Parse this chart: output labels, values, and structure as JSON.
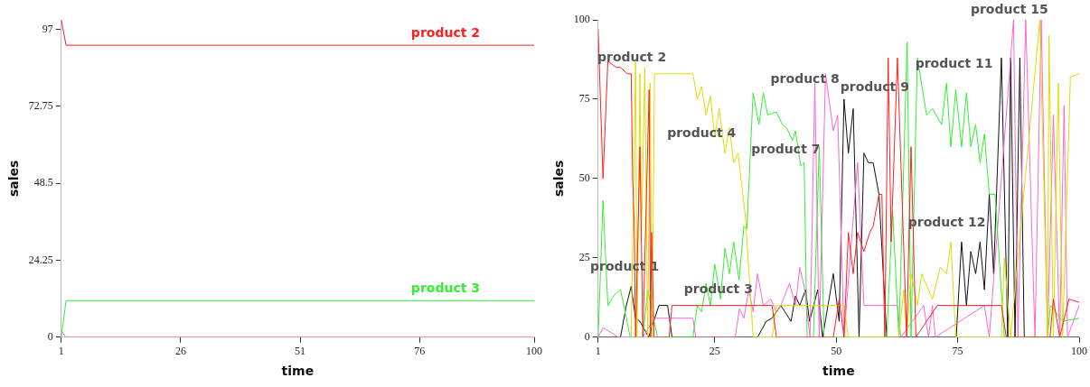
{
  "chart_data": [
    {
      "type": "line",
      "xlabel": "time",
      "ylabel": "sales",
      "xlim": [
        1,
        100
      ],
      "ylim": [
        0,
        100
      ],
      "xticks": [
        1,
        26,
        51,
        76,
        100
      ],
      "yticks": [
        0,
        24.25,
        48.5,
        72.75,
        97
      ],
      "grid": false,
      "legend": false,
      "marker": "none",
      "series": [
        {
          "name": "product 2",
          "color": "#ff2020",
          "x": [
            1,
            2,
            100
          ],
          "values": [
            100,
            92,
            92
          ]
        },
        {
          "name": "product 3",
          "color": "#33ee33",
          "x": [
            1,
            2,
            100
          ],
          "values": [
            0,
            11.5,
            11.5
          ]
        },
        {
          "color": "#ff66cc",
          "x": [
            1,
            2,
            100
          ],
          "values": [
            2,
            0,
            0
          ]
        }
      ]
    },
    {
      "type": "line",
      "xlabel": "time",
      "ylabel": "sales",
      "xlim": [
        1,
        100
      ],
      "ylim": [
        0,
        100
      ],
      "xticks": [
        1,
        25,
        50,
        75,
        100
      ],
      "yticks": [
        0,
        25,
        50,
        75,
        100
      ],
      "grid": false,
      "legend": false,
      "marker": "none",
      "series": [
        {
          "color": "#ff2020",
          "x": [
            1,
            2,
            3,
            4.7,
            5.6,
            7,
            7.8,
            8.1,
            8.4,
            8.7,
            9.6,
            10.2,
            11.5,
            11.8,
            12,
            12.5,
            15.6,
            16.2,
            36.8,
            37.7,
            49.4,
            50.6,
            51.6,
            52.5,
            53.5,
            54.4,
            55.7,
            56.9,
            57.6,
            58.8,
            59.4,
            60,
            60.7,
            61.3,
            62.6,
            64.5,
            65.4,
            66.4,
            70.8,
            84,
            85,
            94,
            94.7,
            96,
            97.9,
            100
          ],
          "values": [
            97,
            50,
            87,
            85,
            85,
            83,
            83,
            50,
            37,
            0,
            60,
            0,
            78,
            0,
            33,
            0,
            0,
            10,
            10,
            0,
            0,
            12,
            0,
            33,
            20,
            33,
            27,
            33,
            35,
            45,
            45,
            0,
            88,
            30,
            88,
            0,
            60,
            0,
            10,
            10,
            0,
            0,
            12,
            0,
            12,
            11
          ]
        },
        {
          "color": "#dddd00",
          "x": [
            7.8,
            8.7,
            9,
            9.6,
            9.9,
            10.6,
            11.2,
            11.7,
            12.1,
            12.6,
            20.5,
            21.4,
            22.3,
            23.2,
            24.1,
            25,
            25.9,
            27.1,
            28,
            28.9,
            29.8,
            31.3,
            32.9,
            36.8,
            37.7,
            51.6,
            52.5,
            62.9,
            63.9,
            64.5,
            65.4,
            66.7,
            67.6,
            69.8,
            71.4,
            72.7,
            73.6,
            74.6,
            84,
            84.6,
            85.9,
            90.7,
            91.9,
            93.5,
            93.8,
            94.7,
            95.7,
            96.6,
            98.2,
            100
          ],
          "values": [
            0,
            87,
            0,
            83,
            30,
            85,
            0,
            80,
            0,
            83,
            83,
            75,
            79,
            70,
            76,
            63,
            72,
            58,
            66,
            55,
            58,
            38,
            0,
            0,
            10,
            10,
            0,
            0,
            15,
            0,
            20,
            10,
            20,
            12,
            22,
            20,
            30,
            0,
            0,
            25,
            0,
            80,
            100,
            0,
            95,
            0,
            80,
            0,
            82,
            83
          ]
        },
        {
          "color": "#33ee33",
          "x": [
            1,
            2,
            3,
            4.2,
            5.6,
            7.6,
            10.2,
            11.2,
            13.2,
            20.5,
            21.4,
            22.3,
            23.2,
            24.1,
            25,
            26.2,
            27.1,
            28,
            28.9,
            30,
            31,
            31.6,
            32.9,
            34.1,
            35,
            35.9,
            37.7,
            38.9,
            39.8,
            41,
            41.6,
            42.7,
            43.4,
            44,
            45.3,
            46.5,
            47.5,
            60.4,
            61.6,
            62.9,
            64.6,
            65.4,
            66.7,
            68.6,
            69.8,
            71.7,
            72.7,
            73.6,
            74.6,
            75.8,
            76.8,
            77.7,
            78.7,
            79.6,
            80.5,
            81.5,
            82.7,
            84.6,
            93.5,
            94.1,
            96.6,
            100
          ],
          "values": [
            0,
            43,
            10,
            13,
            15,
            0,
            0,
            15,
            0,
            0,
            10,
            8,
            17,
            10,
            23,
            12,
            28,
            20,
            30,
            18,
            35,
            34,
            77,
            67,
            77,
            70,
            71,
            67,
            66,
            62,
            65,
            54,
            55,
            0,
            0,
            60,
            0,
            0,
            40,
            0,
            93,
            0,
            88,
            70,
            72,
            67,
            80,
            60,
            78,
            60,
            77,
            60,
            67,
            55,
            64,
            45,
            45,
            0,
            0,
            10,
            5,
            6
          ]
        },
        {
          "color": "#ff66cc",
          "x": [
            1,
            2,
            4.2,
            5.1,
            10.2,
            11.4,
            12.6,
            20.5,
            21.1,
            29.2,
            30.1,
            31,
            32,
            32.9,
            33.8,
            35,
            36.5,
            37.7,
            38.6,
            40.4,
            41.6,
            42.5,
            43.4,
            44.6,
            45.6,
            46.5,
            47.8,
            49.4,
            50.3,
            51.6,
            54.4,
            55.7,
            62.6,
            63.3,
            68,
            69,
            69.8,
            70.4,
            80.5,
            81.5,
            86.5,
            87.4,
            89,
            90.9,
            92.2,
            93.5,
            94.7,
            96,
            96.9,
            97.6,
            100
          ],
          "values": [
            0,
            3,
            1,
            0,
            0,
            3,
            6,
            6,
            0,
            0,
            9,
            6,
            15,
            8,
            20,
            10,
            12,
            8,
            10,
            17,
            10,
            22,
            16,
            0,
            80,
            0,
            83,
            65,
            70,
            0,
            55,
            10,
            10,
            0,
            10,
            0,
            10,
            0,
            10,
            0,
            100,
            0,
            100,
            0,
            100,
            0,
            70,
            0,
            73,
            0,
            10
          ]
        },
        {
          "color": "#111111",
          "x": [
            1,
            5.6,
            6.8,
            7.8,
            8.7,
            9.6,
            11.4,
            13.5,
            15.3,
            16.2,
            33.8,
            35.6,
            36.8,
            38.6,
            40.7,
            41.6,
            42.5,
            43.7,
            44.5,
            46.2,
            47.2,
            49.4,
            50.6,
            51.6,
            52.5,
            53.5,
            54.7,
            55.7,
            56.6,
            57.6,
            58.8,
            60.4,
            74.7,
            75.8,
            76.8,
            77.7,
            78.7,
            79.6,
            80.5,
            81.5,
            82.4,
            84,
            85.3,
            85.9,
            86.8,
            87.8,
            88.7,
            100
          ],
          "values": [
            0,
            0,
            10,
            16,
            6,
            5,
            0,
            10,
            10,
            0,
            0,
            5,
            6,
            10,
            5,
            13,
            10,
            15,
            5,
            15,
            0,
            20,
            5,
            75,
            58,
            72,
            0,
            58,
            55,
            55,
            45,
            0,
            0,
            30,
            10,
            27,
            20,
            30,
            15,
            45,
            20,
            88,
            0,
            88,
            0,
            88,
            0,
            0
          ]
        }
      ],
      "annotations": [
        "product 2",
        "product 4",
        "product 7",
        "product 8",
        "product 9",
        "product 11",
        "product 12",
        "product 15",
        "product 1",
        "product 3"
      ]
    }
  ]
}
